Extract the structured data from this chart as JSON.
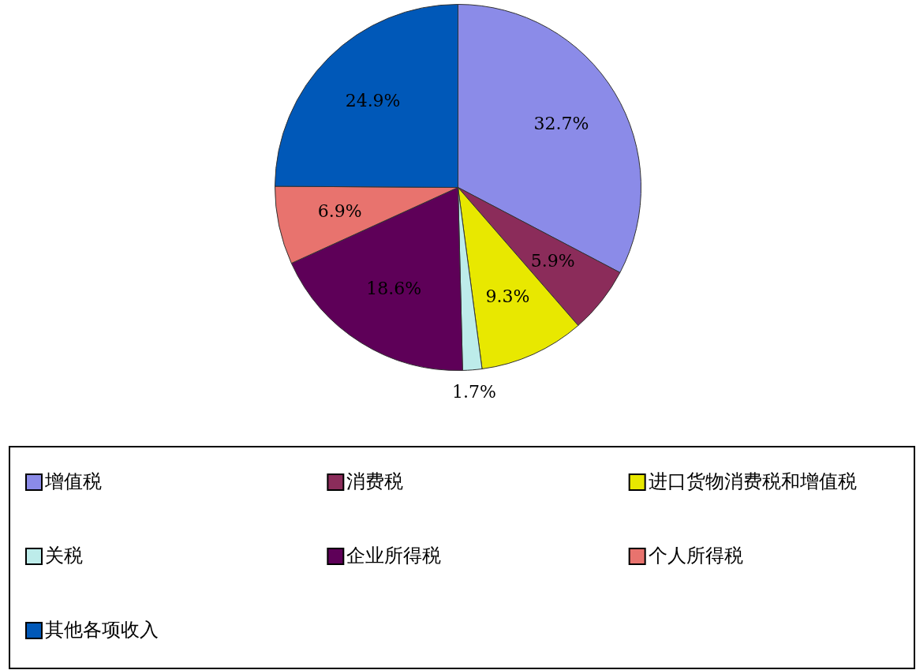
{
  "chart_data": {
    "type": "pie",
    "categories": [
      "增值税",
      "消费税",
      "进口货物消费税和增值税",
      "关税",
      "企业所得税",
      "个人所得税",
      "其他各项收入"
    ],
    "values": [
      32.7,
      5.9,
      9.3,
      1.7,
      18.6,
      6.9,
      24.9
    ],
    "colors": [
      "#8b8be8",
      "#8b2c5a",
      "#e8e800",
      "#bdecea",
      "#5e0058",
      "#e8736e",
      "#0058b8"
    ],
    "value_labels": [
      "32.7%",
      "5.9%",
      "9.3%",
      "1.7%",
      "18.6%",
      "6.9%",
      "24.9%"
    ],
    "legend": "bottom"
  }
}
